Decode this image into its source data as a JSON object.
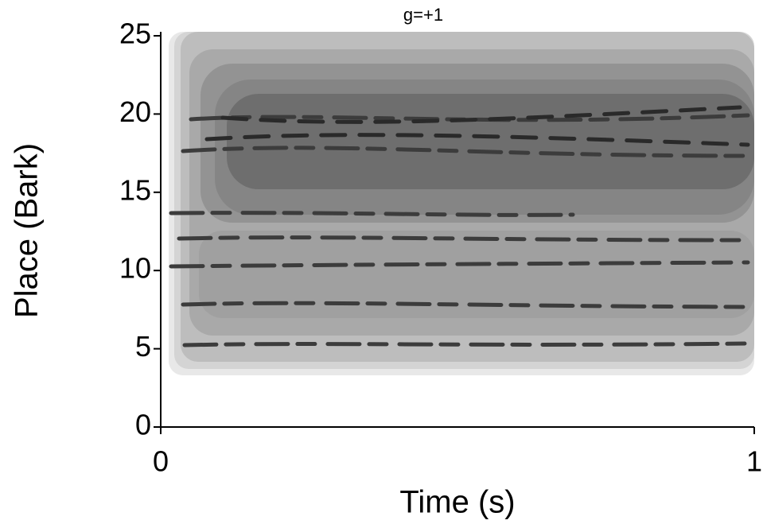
{
  "chart_data": {
    "type": "spectrogram",
    "title": "g=+1",
    "xlabel": "Time (s)",
    "ylabel": "Place (Bark)",
    "xlim": [
      0,
      1
    ],
    "xticks": [
      0,
      1
    ],
    "ylim": [
      0,
      25
    ],
    "yticks": [
      0,
      5,
      10,
      15,
      20,
      25
    ]
  }
}
